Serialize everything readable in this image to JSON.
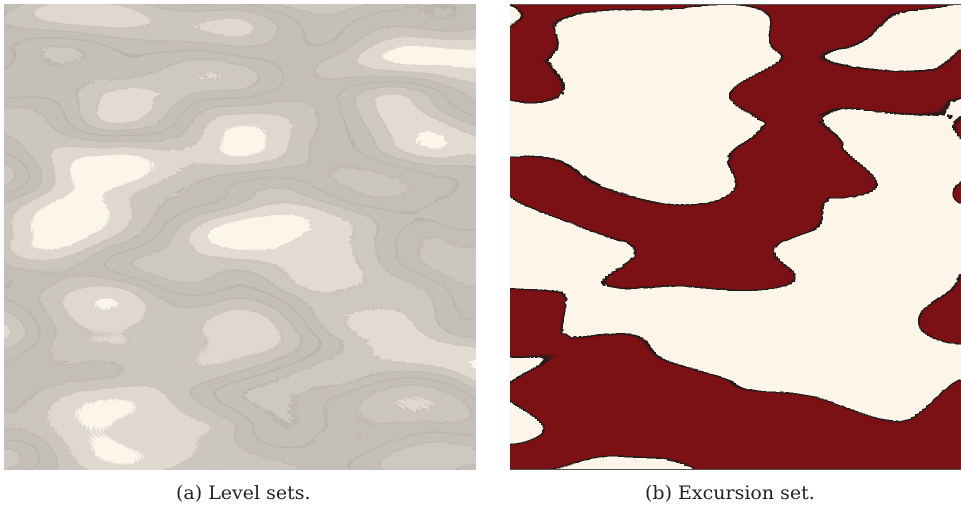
{
  "figure": {
    "captions": {
      "a": "(a) Level sets.",
      "b": "(b) Excursion set."
    },
    "panel_a": {
      "colormap": [
        "#fdf5ea",
        "#fde2ba",
        "#fbc690",
        "#f79b64",
        "#ed6a4c",
        "#d8382f",
        "#b6202a",
        "#8a1621"
      ],
      "outline_color": "#1a1a1a"
    },
    "panel_b": {
      "fill_color": "#7b1114",
      "background_color": "#fdf5ea",
      "outline_color": "#1a1a1a"
    }
  }
}
